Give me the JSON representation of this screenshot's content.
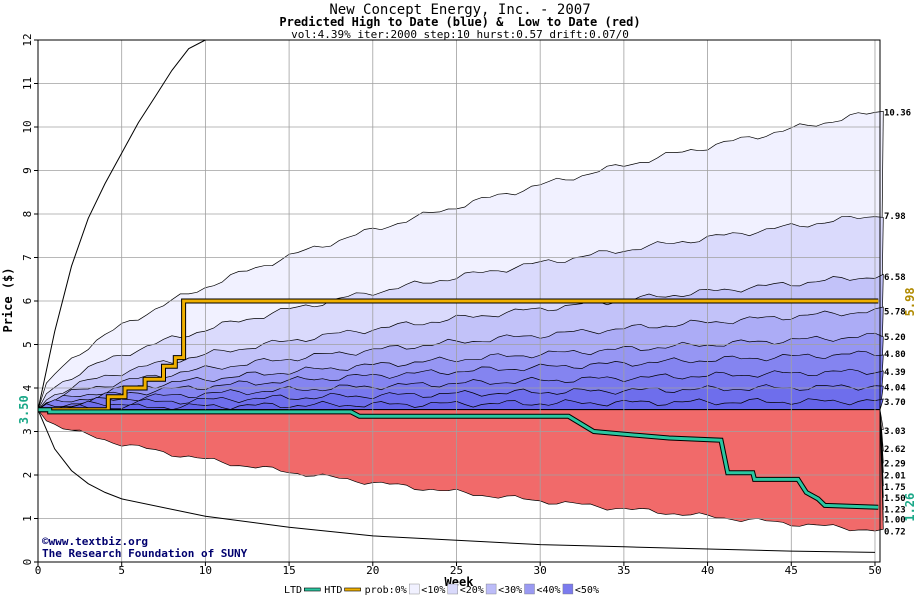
{
  "chart_data": {
    "type": "area",
    "title": "New Concept Energy, Inc. - 2007",
    "subtitle": "Predicted High to Date (blue) &  Low to Date (red)",
    "params": "vol:4.39% iter:2000 step:10 hurst:0.57 drift:0.07/0",
    "xlabel": "Week",
    "ylabel": "Price ($)",
    "xlim": [
      0,
      50.3
    ],
    "ylim": [
      0,
      12
    ],
    "x_ticks": [
      0,
      5,
      10,
      15,
      20,
      25,
      30,
      35,
      40,
      45,
      50
    ],
    "y_ticks": [
      0,
      1,
      2,
      3,
      4,
      5,
      6,
      7,
      8,
      9,
      10,
      11,
      12
    ],
    "grid": true,
    "start_price": 3.5,
    "start_label": "3.50",
    "high_to_date_current": "5.98",
    "low_to_date_current": "1.26",
    "high_bands": [
      {
        "end": 10.36,
        "label": "10.36"
      },
      {
        "end": 7.98,
        "label": "7.98"
      },
      {
        "end": 6.58,
        "label": "6.58"
      },
      {
        "end": 5.78,
        "label": "5.78"
      },
      {
        "end": 5.2,
        "label": "5.20"
      },
      {
        "end": 4.8,
        "label": "4.80"
      },
      {
        "end": 4.39,
        "label": "4.39"
      },
      {
        "end": 4.04,
        "label": "4.04"
      },
      {
        "end": 3.7,
        "label": "3.70"
      }
    ],
    "low_bands": [
      {
        "end": 3.03,
        "label": "3.03"
      },
      {
        "end": 2.62,
        "label": "2.62"
      },
      {
        "end": 2.29,
        "label": "2.29"
      },
      {
        "end": 2.01,
        "label": "2.01"
      },
      {
        "end": 1.75,
        "label": "1.75"
      },
      {
        "end": 1.5,
        "label": "1.50"
      },
      {
        "end": 1.23,
        "label": "1.23"
      },
      {
        "end": 1.0,
        "label": "1.00"
      },
      {
        "end": 0.72,
        "label": "0.72"
      }
    ],
    "outer_high": {
      "x": [
        0,
        1,
        2,
        3,
        4,
        5,
        6,
        7,
        8,
        9,
        10
      ],
      "y": [
        3.5,
        5.3,
        6.8,
        7.9,
        8.7,
        9.4,
        10.1,
        10.7,
        11.3,
        11.8,
        12.0
      ]
    },
    "outer_low": {
      "x": [
        0,
        1,
        2,
        3,
        4,
        5,
        10,
        15,
        20,
        25,
        30,
        35,
        40,
        45,
        50
      ],
      "y": [
        3.5,
        2.6,
        2.1,
        1.8,
        1.6,
        1.45,
        1.05,
        0.8,
        0.6,
        0.5,
        0.4,
        0.35,
        0.3,
        0.25,
        0.22
      ]
    },
    "htd_series": {
      "name": "HTD",
      "x": [
        0,
        4.2,
        4.2,
        5.2,
        5.2,
        6.4,
        6.4,
        7.5,
        7.5,
        8.2,
        8.2,
        8.7,
        8.7,
        50.2
      ],
      "y": [
        3.5,
        3.5,
        3.8,
        3.8,
        4.0,
        4.0,
        4.2,
        4.2,
        4.5,
        4.5,
        4.7,
        4.7,
        6.0,
        6.0
      ]
    },
    "ltd_series": {
      "name": "LTD",
      "x": [
        0,
        0.7,
        0.7,
        18.7,
        19.2,
        31.7,
        33.2,
        36.2,
        37.7,
        40.8,
        41.2,
        42.7,
        42.8,
        45.4,
        45.9,
        46.6,
        47.0,
        50.2
      ],
      "y": [
        3.5,
        3.5,
        3.45,
        3.45,
        3.35,
        3.35,
        3.0,
        2.9,
        2.85,
        2.8,
        2.05,
        2.05,
        1.9,
        1.9,
        1.6,
        1.45,
        1.3,
        1.26
      ]
    },
    "legend": [
      {
        "label": "LTD",
        "color": "#2bc6a0"
      },
      {
        "label": "HTD",
        "color": "#f0b000"
      },
      {
        "label": "prob:0%",
        "color": "#ffffff"
      },
      {
        "label": "<10%",
        "color": "#f1f1ff"
      },
      {
        "label": "<20%",
        "color": "#d9d9fb"
      },
      {
        "label": "<30%",
        "color": "#bcbcf8"
      },
      {
        "label": "<40%",
        "color": "#9a9af2"
      },
      {
        "label": "<50%",
        "color": "#7b7bee"
      }
    ],
    "watermark": [
      "©www.textbiz.org",
      "The Research Foundation of SUNY"
    ]
  },
  "colors": {
    "blue_bands": [
      "#f1f1ff",
      "#dadafc",
      "#c2c2f9",
      "#acacf6",
      "#9696f3",
      "#8484f0",
      "#7878ee",
      "#6e6eec",
      "#6464ea"
    ],
    "red_bands": [
      "#fff0ee",
      "#ffdede",
      "#fdc7c7",
      "#fbb1b1",
      "#f99c9c",
      "#f78a8a",
      "#f57c7c",
      "#f37272",
      "#f16a6a"
    ],
    "htd": "#f0b000",
    "ltd": "#2bc6a0",
    "grid": "#a0a0a0",
    "label_gold": "#b08a00",
    "label_teal": "#1aa888",
    "watermark_text": "#00006e"
  }
}
